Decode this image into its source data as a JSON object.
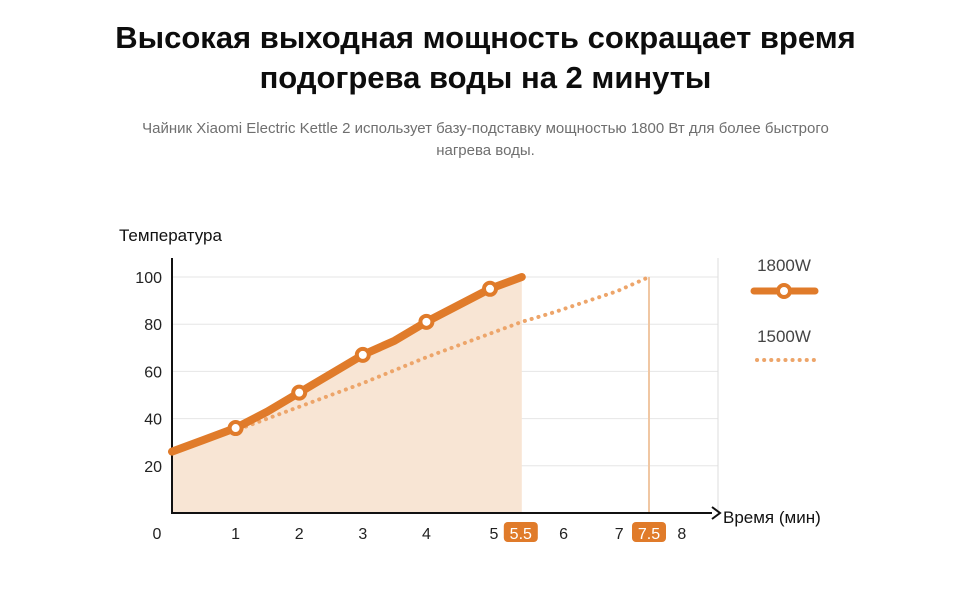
{
  "header": {
    "title_line1": "Высокая выходная мощность сокращает время",
    "title_line2": "подогрева воды на 2 минуты",
    "subtitle_line1": "Чайник Xiaomi Electric Kettle 2 использует базу-подставку мощностью 1800 Вт для более быстрого",
    "subtitle_line2": "нагрева воды."
  },
  "chart_data": {
    "type": "line",
    "ylabel": "Температура",
    "xlabel": "Время (мин)",
    "xlim": [
      0,
      8
    ],
    "ylim": [
      0,
      100
    ],
    "x_ticks": [
      "0",
      "1",
      "2",
      "3",
      "4",
      "5",
      "6",
      "7",
      "8"
    ],
    "y_ticks": [
      "20",
      "40",
      "60",
      "80",
      "100"
    ],
    "grid": true,
    "legend_position": "right",
    "series": [
      {
        "name": "1800W",
        "style": "solid-thick-with-markers",
        "color": "#e07b2a",
        "x": [
          0,
          0.5,
          1,
          1.5,
          2,
          2.5,
          3,
          3.5,
          4,
          4.5,
          5,
          5.5
        ],
        "y": [
          26,
          31,
          36,
          43,
          51,
          59,
          67,
          73,
          81,
          88,
          95,
          100
        ],
        "markers_at_x": [
          1,
          2,
          3,
          4,
          5
        ]
      },
      {
        "name": "1500W",
        "style": "dotted",
        "color": "#eda56a",
        "x": [
          0,
          1,
          2,
          3,
          4,
          5,
          5.5,
          6,
          7,
          7.5
        ],
        "y": [
          26,
          35,
          45,
          55,
          66,
          76,
          81,
          85,
          94,
          100
        ]
      }
    ],
    "highlighted_x": [
      {
        "value": 5.5,
        "label": "5.5"
      },
      {
        "value": 7.5,
        "label": "7.5"
      }
    ],
    "shaded_area_series": "1800W",
    "shade_color": "#f8e5d4",
    "accent_color": "#e07b2a"
  }
}
